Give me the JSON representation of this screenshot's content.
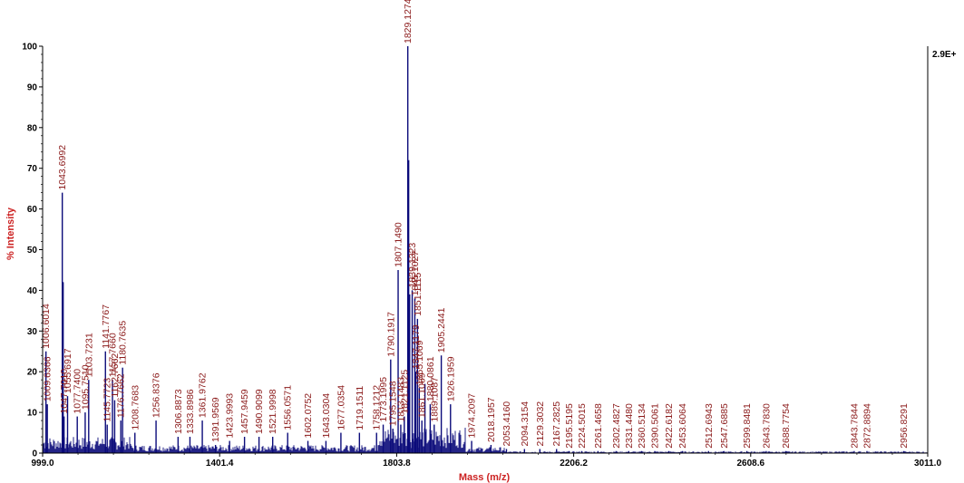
{
  "chart_data": {
    "type": "line",
    "xlabel": "Mass (m/z)",
    "ylabel": "% Intensity",
    "xlim": [
      999.0,
      3011.0
    ],
    "ylim": [
      0,
      100
    ],
    "x_ticks": [
      "999.0",
      "1401.4",
      "1803.8",
      "2206.2",
      "2608.6",
      "3011.0"
    ],
    "y_ticks": [
      "0",
      "10",
      "20",
      "30",
      "40",
      "50",
      "60",
      "70",
      "80",
      "90",
      "100"
    ],
    "max_intensity_label": "2.9E+",
    "grid": false,
    "line_color": "#0b0b7a",
    "label_color": "#8b1a1a",
    "axis_title_color": "#cc2222",
    "peaks": [
      {
        "x": 1006.6014,
        "y": 25,
        "label": "1006.6014"
      },
      {
        "x": 1009.6366,
        "y": 12,
        "label": "1009.6366"
      },
      {
        "x": 1043.6992,
        "y": 64,
        "label": "1043.6992"
      },
      {
        "x": 1045.7,
        "y": 42,
        "label": ""
      },
      {
        "x": 1047.701,
        "y": 9,
        "label": "1047.7010"
      },
      {
        "x": 1055.6917,
        "y": 14,
        "label": "1055.6917"
      },
      {
        "x": 1077.74,
        "y": 9,
        "label": "1077.7400"
      },
      {
        "x": 1095.751,
        "y": 10,
        "label": "1095.7510"
      },
      {
        "x": 1103.7231,
        "y": 18,
        "label": "1103.7231"
      },
      {
        "x": 1141.7767,
        "y": 25,
        "label": "1141.7767"
      },
      {
        "x": 1145.7723,
        "y": 7,
        "label": "1145.7723"
      },
      {
        "x": 1157.766,
        "y": 18,
        "label": "1157.7660"
      },
      {
        "x": 1162.7662,
        "y": 13,
        "label": "1162.7662"
      },
      {
        "x": 1176.7662,
        "y": 8,
        "label": "1176.7662"
      },
      {
        "x": 1180.7635,
        "y": 21,
        "label": "1180.7635"
      },
      {
        "x": 1208.7683,
        "y": 5,
        "label": "1208.7683"
      },
      {
        "x": 1256.8376,
        "y": 8,
        "label": "1256.8376"
      },
      {
        "x": 1306.8873,
        "y": 4,
        "label": "1306.8873"
      },
      {
        "x": 1333.8986,
        "y": 4,
        "label": "1333.8986"
      },
      {
        "x": 1361.9762,
        "y": 8,
        "label": "1361.9762"
      },
      {
        "x": 1391.9569,
        "y": 2,
        "label": "1391.9569"
      },
      {
        "x": 1423.9993,
        "y": 3,
        "label": "1423.9993"
      },
      {
        "x": 1457.9459,
        "y": 4,
        "label": "1457.9459"
      },
      {
        "x": 1490.9099,
        "y": 4,
        "label": "1490.9099"
      },
      {
        "x": 1521.9998,
        "y": 4,
        "label": "1521.9998"
      },
      {
        "x": 1556.0571,
        "y": 5,
        "label": "1556.0571"
      },
      {
        "x": 1602.0752,
        "y": 3,
        "label": "1602.0752"
      },
      {
        "x": 1643.0304,
        "y": 3,
        "label": "1643.0304"
      },
      {
        "x": 1677.0354,
        "y": 5,
        "label": "1677.0354"
      },
      {
        "x": 1719.1511,
        "y": 5,
        "label": "1719.1511"
      },
      {
        "x": 1758.1212,
        "y": 5,
        "label": "1758.1212"
      },
      {
        "x": 1773.1995,
        "y": 7,
        "label": "1773.1995"
      },
      {
        "x": 1790.1917,
        "y": 23,
        "label": "1790.1917"
      },
      {
        "x": 1795.1548,
        "y": 6,
        "label": "1795.1548"
      },
      {
        "x": 1807.149,
        "y": 45,
        "label": "1807.1490"
      },
      {
        "x": 1813.1483,
        "y": 7,
        "label": "1813.1483"
      },
      {
        "x": 1821.1125,
        "y": 9,
        "label": "1821.1125"
      },
      {
        "x": 1829.1274,
        "y": 100,
        "label": "1829.1274"
      },
      {
        "x": 1831.1,
        "y": 72,
        "label": ""
      },
      {
        "x": 1833.3,
        "y": 39,
        "label": ""
      },
      {
        "x": 1839.1323,
        "y": 40,
        "label": "1839.1323"
      },
      {
        "x": 1845.1027,
        "y": 38,
        "label": "1845.1027"
      },
      {
        "x": 1847.1179,
        "y": 20,
        "label": "1847.1179"
      },
      {
        "x": 1851.1115,
        "y": 33,
        "label": "1851.1115"
      },
      {
        "x": 1855.1069,
        "y": 16,
        "label": "1855.1069"
      },
      {
        "x": 1861.1069,
        "y": 8,
        "label": "1861.1069"
      },
      {
        "x": 1868.1,
        "y": 17,
        "label": ""
      },
      {
        "x": 1880.0861,
        "y": 12,
        "label": "1880.0861"
      },
      {
        "x": 1889.1087,
        "y": 7,
        "label": "1889.1087"
      },
      {
        "x": 1905.2441,
        "y": 24,
        "label": "1905.2441"
      },
      {
        "x": 1926.1959,
        "y": 12,
        "label": "1926.1959"
      },
      {
        "x": 1974.2097,
        "y": 3,
        "label": "1974.2097"
      },
      {
        "x": 2018.1957,
        "y": 2,
        "label": "2018.1957"
      },
      {
        "x": 2053.416,
        "y": 1,
        "label": "2053.4160"
      },
      {
        "x": 2094.3154,
        "y": 1,
        "label": "2094.3154"
      },
      {
        "x": 2129.3032,
        "y": 1,
        "label": "2129.3032"
      },
      {
        "x": 2167.2825,
        "y": 1,
        "label": "2167.2825"
      },
      {
        "x": 2195.5195,
        "y": 0.5,
        "label": "2195.5195"
      },
      {
        "x": 2224.5015,
        "y": 0.5,
        "label": "2224.5015"
      },
      {
        "x": 2261.4658,
        "y": 0.5,
        "label": "2261.4658"
      },
      {
        "x": 2302.4827,
        "y": 0.5,
        "label": "2302.4827"
      },
      {
        "x": 2331.448,
        "y": 0.5,
        "label": "2331.4480"
      },
      {
        "x": 2360.5134,
        "y": 0.5,
        "label": "2360.5134"
      },
      {
        "x": 2390.5061,
        "y": 0.5,
        "label": "2390.5061"
      },
      {
        "x": 2422.6182,
        "y": 0.5,
        "label": "2422.6182"
      },
      {
        "x": 2453.6064,
        "y": 0.5,
        "label": "2453.6064"
      },
      {
        "x": 2512.6943,
        "y": 0.5,
        "label": "2512.6943"
      },
      {
        "x": 2547.6885,
        "y": 0.5,
        "label": "2547.6885"
      },
      {
        "x": 2599.8481,
        "y": 0.5,
        "label": "2599.8481"
      },
      {
        "x": 2643.783,
        "y": 0.5,
        "label": "2643.7830"
      },
      {
        "x": 2688.7754,
        "y": 0.5,
        "label": "2688.7754"
      },
      {
        "x": 2843.7844,
        "y": 0.5,
        "label": "2843.7844"
      },
      {
        "x": 2872.8894,
        "y": 0.5,
        "label": "2872.8894"
      },
      {
        "x": 2956.8291,
        "y": 0.5,
        "label": "2956.8291"
      }
    ]
  }
}
